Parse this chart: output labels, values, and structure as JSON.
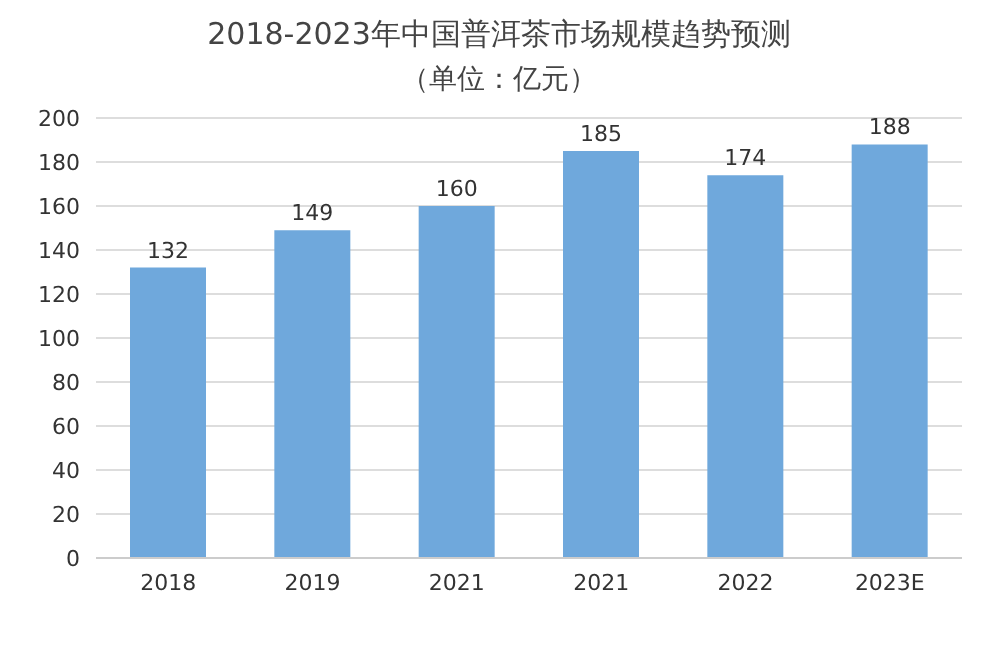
{
  "chart_data": {
    "type": "bar",
    "title": "2018-2023年中国普洱茶市场规模趋势预测",
    "subtitle": "（单位：亿元）",
    "categories": [
      "2018",
      "2019",
      "2021",
      "2021",
      "2022",
      "2023E"
    ],
    "values": [
      132,
      149,
      160,
      185,
      174,
      188
    ],
    "color": "#6fa8dc",
    "ylim": [
      0,
      200
    ],
    "yticks": [
      0,
      20,
      40,
      60,
      80,
      100,
      120,
      140,
      160,
      180,
      200
    ],
    "grid": "y",
    "data_labels": true
  }
}
